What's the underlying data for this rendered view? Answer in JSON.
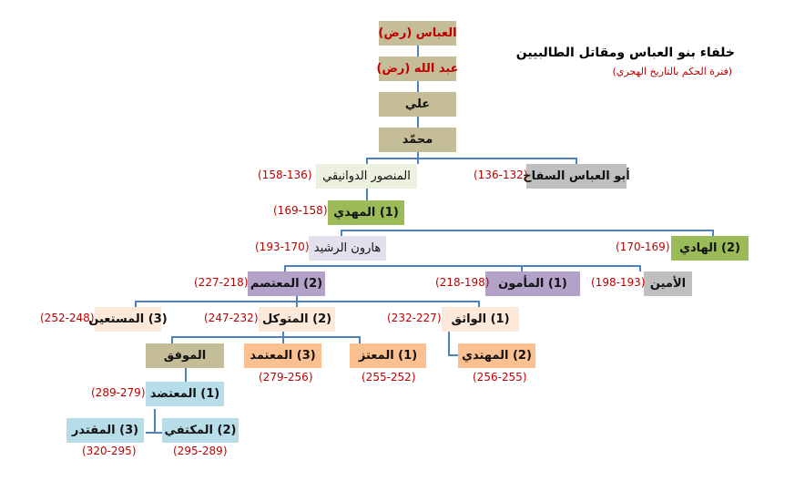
{
  "title": "خلفاء بنو العباس ومقاتل الطالبيين",
  "subtitle": "(فترة الحكم بالتاريخ الهجري)",
  "colors": {
    "line": "#4f81bd",
    "date": "#c00000",
    "tan": "#c4bd97",
    "grey": "#bfbfbf",
    "green": "#9bbb59",
    "light_green": "#ebf1de",
    "lavender": "#e4dfec",
    "purple": "#b3a2c7",
    "peach": "#fde9d9",
    "orange": "#fac090",
    "light_blue": "#b7dee8"
  },
  "nodes": {
    "abbas": "العباس (رض)",
    "abdullah": "عبد الله (رض)",
    "ali": "علي",
    "muhammad": "محمّد",
    "mansur": "المنصور الدوانيقي",
    "mansur_date": "(158-136)",
    "saffah": "أبو العباس السفاح",
    "saffah_date": "(136-132)",
    "mahdi": "(1) المهدي",
    "mahdi_date": "(169-158)",
    "harun": "هارون الرشيد",
    "harun_date": "(193-170)",
    "hadi": "(2) الهادي",
    "hadi_date": "(170-169)",
    "mutasim": "(2) المعتصم",
    "mutasim_date": "(227-218)",
    "mamun": "(1) المأمون",
    "mamun_date": "(218-198)",
    "amin": "الأمين",
    "amin_date": "(198-193)",
    "mustain": "(3) المستعين",
    "mustain_date": "(252-248)",
    "mutawakkil": "(2) المتوكل",
    "mutawakkil_date": "(247-232)",
    "wathiq": "(1) الواثق",
    "wathiq_date": "(232-227)",
    "muwaffaq": "الموفق",
    "mutamid": "(3) المعتمد",
    "mutamid_date": "(279-256)",
    "mutazz": "(1) المعتز",
    "mutazz_date": "(255-252)",
    "muhtadi": "(2) المهتدي",
    "muhtadi_date": "(256-255)",
    "mutadid": "(1) المعتضد",
    "mutadid_date": "(289-279)",
    "muktafi": "(2) المكتفي",
    "muktafi_date": "(295-289)",
    "muqtadir": "(3) المقتدر",
    "muqtadir_date": "(320-295)"
  }
}
